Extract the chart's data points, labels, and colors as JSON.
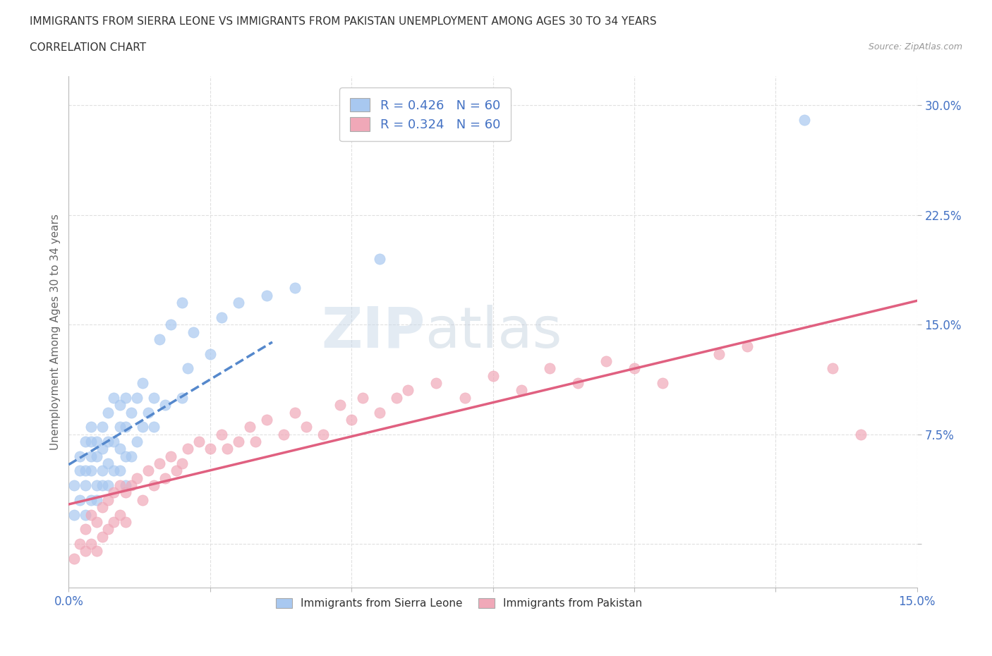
{
  "title_line1": "IMMIGRANTS FROM SIERRA LEONE VS IMMIGRANTS FROM PAKISTAN UNEMPLOYMENT AMONG AGES 30 TO 34 YEARS",
  "title_line2": "CORRELATION CHART",
  "source_text": "Source: ZipAtlas.com",
  "ylabel": "Unemployment Among Ages 30 to 34 years",
  "xlim": [
    0.0,
    0.15
  ],
  "ylim": [
    -0.03,
    0.32
  ],
  "xticks": [
    0.0,
    0.025,
    0.05,
    0.075,
    0.1,
    0.125,
    0.15
  ],
  "xticklabels": [
    "0.0%",
    "",
    "",
    "",
    "",
    "",
    "15.0%"
  ],
  "yticks": [
    0.0,
    0.075,
    0.15,
    0.225,
    0.3
  ],
  "yticklabels": [
    "",
    "7.5%",
    "15.0%",
    "22.5%",
    "30.0%"
  ],
  "legend_r1": "R = 0.426   N = 60",
  "legend_r2": "R = 0.324   N = 60",
  "color_sierra": "#A8C8F0",
  "color_pakistan": "#F0A8B8",
  "color_trend_sierra": "#5588CC",
  "color_trend_pakistan": "#E06080",
  "watermark_zip": "ZIP",
  "watermark_atlas": "atlas",
  "grid_color": "#DDDDDD",
  "legend_label_sierra": "Immigrants from Sierra Leone",
  "legend_label_pakistan": "Immigrants from Pakistan",
  "sierra_x": [
    0.001,
    0.001,
    0.002,
    0.002,
    0.002,
    0.003,
    0.003,
    0.003,
    0.003,
    0.004,
    0.004,
    0.004,
    0.004,
    0.004,
    0.005,
    0.005,
    0.005,
    0.005,
    0.006,
    0.006,
    0.006,
    0.006,
    0.007,
    0.007,
    0.007,
    0.007,
    0.008,
    0.008,
    0.008,
    0.009,
    0.009,
    0.009,
    0.009,
    0.01,
    0.01,
    0.01,
    0.01,
    0.011,
    0.011,
    0.012,
    0.012,
    0.013,
    0.013,
    0.014,
    0.015,
    0.015,
    0.016,
    0.017,
    0.018,
    0.02,
    0.02,
    0.021,
    0.022,
    0.025,
    0.027,
    0.03,
    0.035,
    0.04,
    0.055,
    0.13
  ],
  "sierra_y": [
    0.02,
    0.04,
    0.03,
    0.05,
    0.06,
    0.02,
    0.04,
    0.05,
    0.07,
    0.03,
    0.05,
    0.06,
    0.07,
    0.08,
    0.03,
    0.04,
    0.06,
    0.07,
    0.04,
    0.05,
    0.065,
    0.08,
    0.04,
    0.055,
    0.07,
    0.09,
    0.05,
    0.07,
    0.1,
    0.05,
    0.065,
    0.08,
    0.095,
    0.04,
    0.06,
    0.08,
    0.1,
    0.06,
    0.09,
    0.07,
    0.1,
    0.08,
    0.11,
    0.09,
    0.08,
    0.1,
    0.14,
    0.095,
    0.15,
    0.1,
    0.165,
    0.12,
    0.145,
    0.13,
    0.155,
    0.165,
    0.17,
    0.175,
    0.195,
    0.29
  ],
  "pakistan_x": [
    0.001,
    0.002,
    0.003,
    0.003,
    0.004,
    0.004,
    0.005,
    0.005,
    0.006,
    0.006,
    0.007,
    0.007,
    0.008,
    0.008,
    0.009,
    0.009,
    0.01,
    0.01,
    0.011,
    0.012,
    0.013,
    0.014,
    0.015,
    0.016,
    0.017,
    0.018,
    0.019,
    0.02,
    0.021,
    0.023,
    0.025,
    0.027,
    0.028,
    0.03,
    0.032,
    0.033,
    0.035,
    0.038,
    0.04,
    0.042,
    0.045,
    0.048,
    0.05,
    0.052,
    0.055,
    0.058,
    0.06,
    0.065,
    0.07,
    0.075,
    0.08,
    0.085,
    0.09,
    0.095,
    0.1,
    0.105,
    0.115,
    0.12,
    0.135,
    0.14
  ],
  "pakistan_y": [
    -0.01,
    0.0,
    -0.005,
    0.01,
    0.0,
    0.02,
    -0.005,
    0.015,
    0.005,
    0.025,
    0.01,
    0.03,
    0.015,
    0.035,
    0.02,
    0.04,
    0.015,
    0.035,
    0.04,
    0.045,
    0.03,
    0.05,
    0.04,
    0.055,
    0.045,
    0.06,
    0.05,
    0.055,
    0.065,
    0.07,
    0.065,
    0.075,
    0.065,
    0.07,
    0.08,
    0.07,
    0.085,
    0.075,
    0.09,
    0.08,
    0.075,
    0.095,
    0.085,
    0.1,
    0.09,
    0.1,
    0.105,
    0.11,
    0.1,
    0.115,
    0.105,
    0.12,
    0.11,
    0.125,
    0.12,
    0.11,
    0.13,
    0.135,
    0.12,
    0.075
  ],
  "sierra_trend_x": [
    0.0,
    0.036
  ],
  "pakistan_trend_x": [
    0.0,
    0.15
  ]
}
